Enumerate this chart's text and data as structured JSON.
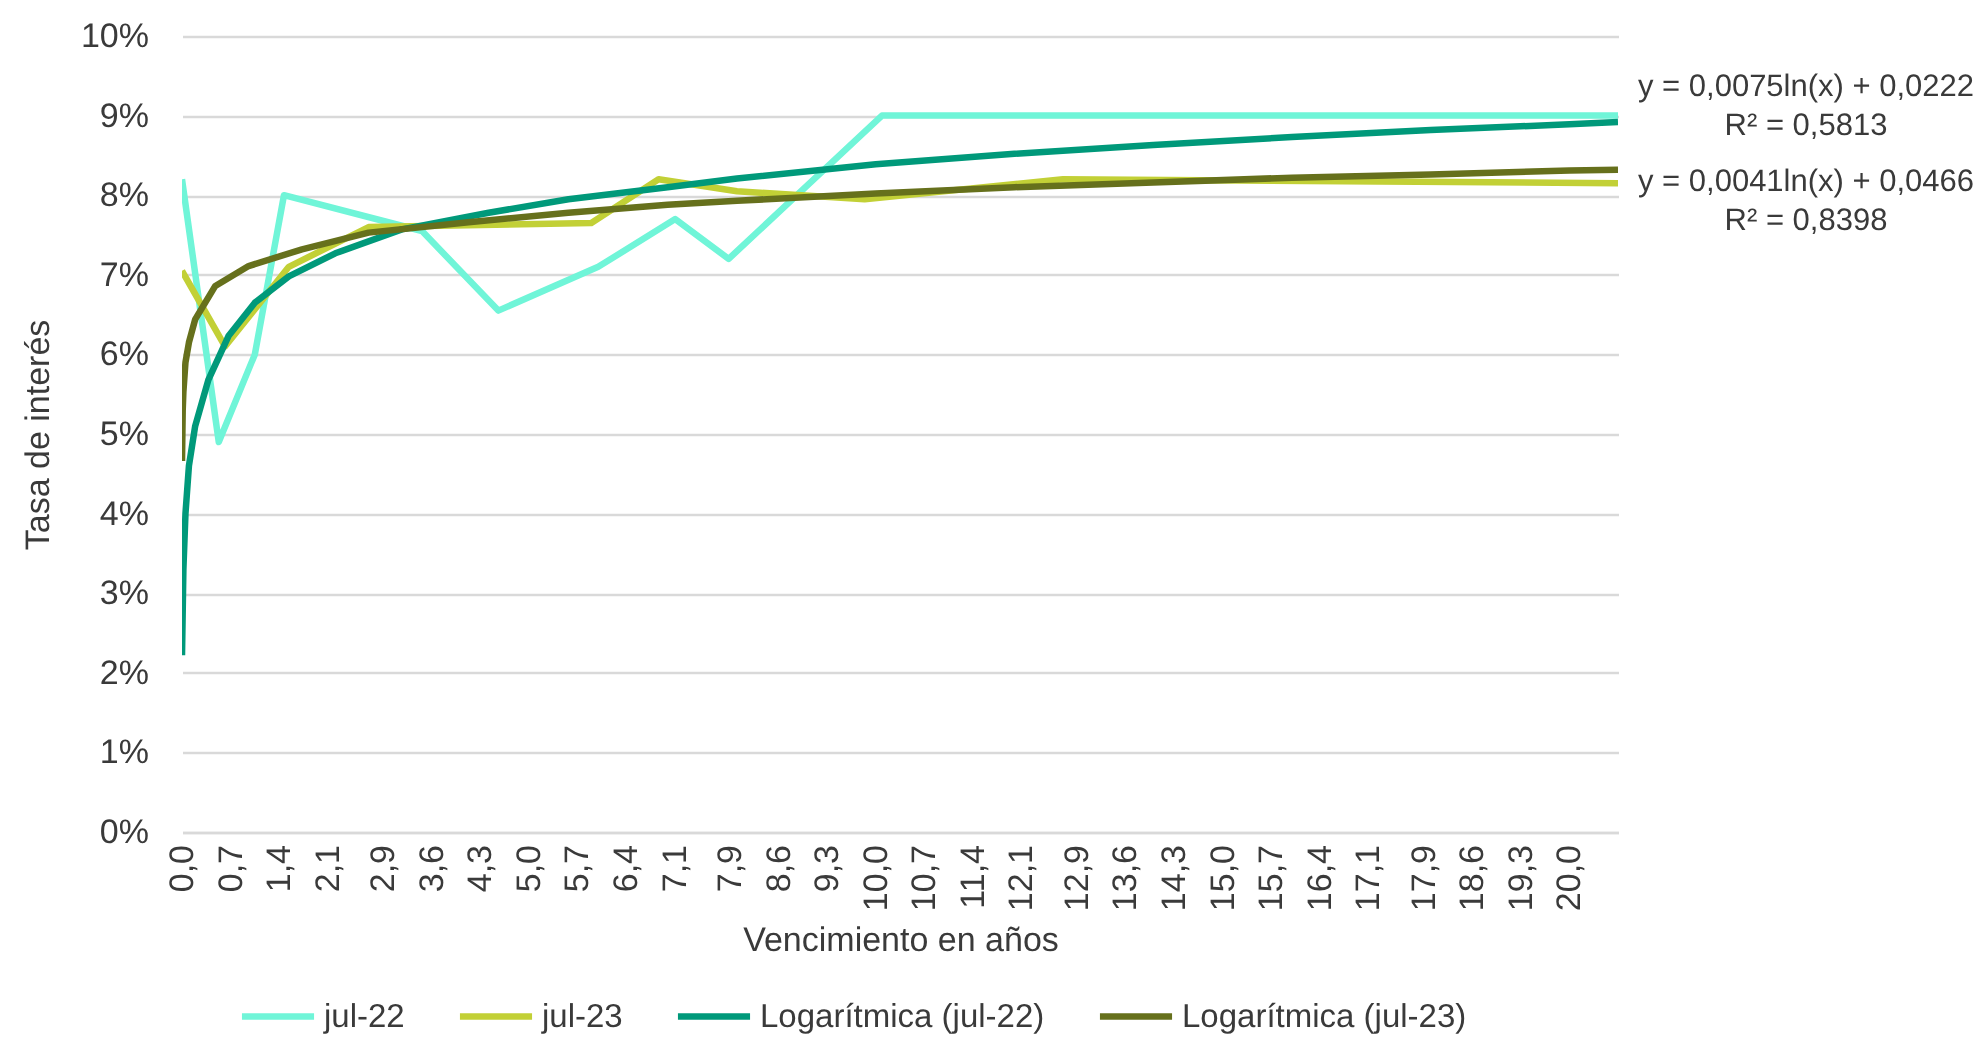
{
  "chart_data": {
    "type": "line",
    "xlabel": "Vencimiento en años",
    "ylabel": "Tasa de interés",
    "xlim": [
      0,
      20.7
    ],
    "xticks": [
      {
        "value": 0,
        "label": "0,0"
      },
      {
        "value": 0.7,
        "label": "0,7"
      },
      {
        "value": 1.4,
        "label": "1,4"
      },
      {
        "value": 2.1,
        "label": "2,1"
      },
      {
        "value": 2.9,
        "label": "2,9"
      },
      {
        "value": 3.6,
        "label": "3,6"
      },
      {
        "value": 4.3,
        "label": "4,3"
      },
      {
        "value": 5,
        "label": "5,0"
      },
      {
        "value": 5.7,
        "label": "5,7"
      },
      {
        "value": 6.4,
        "label": "6,4"
      },
      {
        "value": 7.1,
        "label": "7,1"
      },
      {
        "value": 7.9,
        "label": "7,9"
      },
      {
        "value": 8.6,
        "label": "8,6"
      },
      {
        "value": 9.3,
        "label": "9,3"
      },
      {
        "value": 10,
        "label": "10,0"
      },
      {
        "value": 10.7,
        "label": "10,7"
      },
      {
        "value": 11.4,
        "label": "11,4"
      },
      {
        "value": 12.1,
        "label": "12,1"
      },
      {
        "value": 12.9,
        "label": "12,9"
      },
      {
        "value": 13.6,
        "label": "13,6"
      },
      {
        "value": 14.3,
        "label": "14,3"
      },
      {
        "value": 15,
        "label": "15,0"
      },
      {
        "value": 15.7,
        "label": "15,7"
      },
      {
        "value": 16.4,
        "label": "16,4"
      },
      {
        "value": 17.1,
        "label": "17,1"
      },
      {
        "value": 17.9,
        "label": "17,9"
      },
      {
        "value": 18.6,
        "label": "18,6"
      },
      {
        "value": 19.3,
        "label": "19,3"
      },
      {
        "value": 20,
        "label": "20,0"
      }
    ],
    "ylim": [
      0,
      10
    ],
    "yticks": [
      {
        "value": 0,
        "label": "0%"
      },
      {
        "value": 1,
        "label": "1%"
      },
      {
        "value": 2,
        "label": "2%"
      },
      {
        "value": 3,
        "label": "3%"
      },
      {
        "value": 4,
        "label": "4%"
      },
      {
        "value": 5,
        "label": "5%"
      },
      {
        "value": 6,
        "label": "6%"
      },
      {
        "value": 7,
        "label": "7%"
      },
      {
        "value": 8,
        "label": "8%"
      },
      {
        "value": 9,
        "label": "9%"
      },
      {
        "value": 10,
        "label": "10%"
      }
    ],
    "grid": "y",
    "legend": "bottom",
    "line_style": "solid",
    "series": [
      {
        "name": "jul-22",
        "color": "#70f5d8",
        "x": [
          0,
          0.53,
          1.05,
          1.47,
          3.46,
          4.56,
          6,
          7.11,
          7.88,
          10.09,
          20.7
        ],
        "values": [
          8.2,
          4.9,
          6.0,
          8.0,
          7.55,
          6.55,
          7.1,
          7.7,
          7.2,
          9.0,
          9.0
        ]
      },
      {
        "name": "jul-23",
        "color": "#c2d036",
        "x": [
          0,
          0.62,
          1.54,
          2.69,
          5.9,
          6.87,
          8,
          9.84,
          12.7,
          20.7
        ],
        "values": [
          7.05,
          6.1,
          7.1,
          7.6,
          7.65,
          8.2,
          8.05,
          7.95,
          8.2,
          8.15
        ]
      },
      {
        "name": "Logarítmica (jul-22)",
        "color": "#00997a",
        "x": [
          0,
          0.02,
          0.05,
          0.1,
          0.19,
          0.38,
          0.67,
          1.05,
          1.54,
          2.21,
          3.17,
          4.42,
          5.57,
          7,
          8,
          10,
          12,
          14,
          16,
          18,
          20,
          20.7
        ],
        "values": [
          2.22,
          3.3,
          4.0,
          4.6,
          5.1,
          5.68,
          6.23,
          6.65,
          6.98,
          7.27,
          7.57,
          7.78,
          7.95,
          8.1,
          8.21,
          8.39,
          8.52,
          8.63,
          8.73,
          8.82,
          8.89,
          8.92
        ]
      },
      {
        "name": "Logarítmica (jul-23)",
        "color": "#66701c",
        "x": [
          0,
          0.01,
          0.02,
          0.05,
          0.1,
          0.19,
          0.48,
          0.96,
          1.73,
          2.69,
          4.13,
          5.57,
          7,
          8,
          10,
          12,
          14,
          16,
          18,
          20,
          20.7
        ],
        "values": [
          4.66,
          5.29,
          5.53,
          5.9,
          6.15,
          6.44,
          6.86,
          7.11,
          7.32,
          7.53,
          7.66,
          7.78,
          7.88,
          7.93,
          8.02,
          8.1,
          8.16,
          8.22,
          8.26,
          8.31,
          8.32
        ]
      }
    ],
    "annotations": [
      "y = 0,0075ln(x) + 0,0222",
      "R² = 0,5813",
      "y = 0,0041ln(x) + 0,0466",
      "R² = 0,8398"
    ]
  }
}
